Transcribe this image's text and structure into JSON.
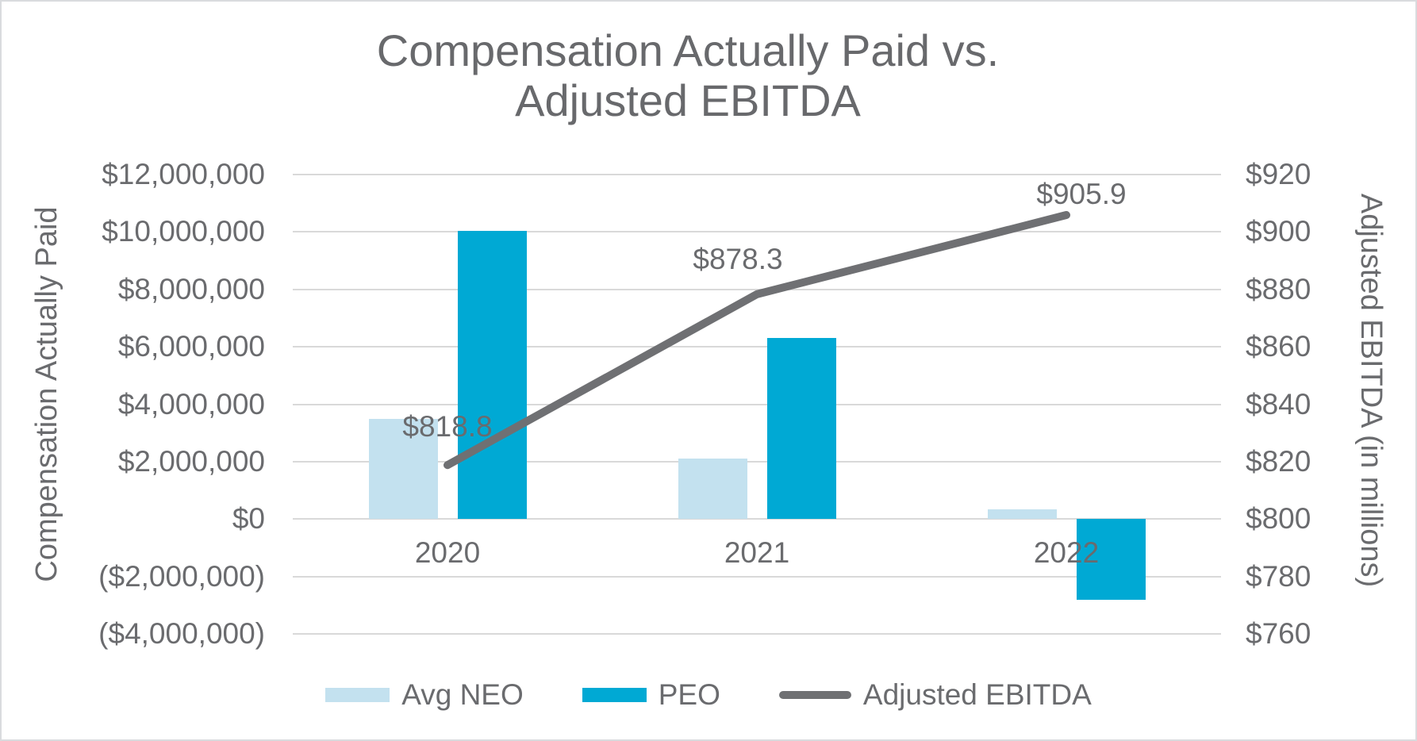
{
  "title": {
    "line1": "Compensation Actually Paid vs.",
    "line2": "Adjusted EBITDA"
  },
  "chart_data": {
    "type": "bar",
    "subtype": "combo-bar-line-dual-axis",
    "title": "Compensation Actually Paid vs. Adjusted EBITDA",
    "categories": [
      "2020",
      "2021",
      "2022"
    ],
    "series": [
      {
        "name": "Avg NEO",
        "type": "bar",
        "axis": "left",
        "color": "#C3E1EF",
        "values": [
          3500000,
          2100000,
          350000
        ]
      },
      {
        "name": "PEO",
        "type": "bar",
        "axis": "left",
        "color": "#00A9D4",
        "values": [
          10050000,
          6300000,
          -2800000
        ]
      },
      {
        "name": "Adjusted EBITDA",
        "type": "line",
        "axis": "right",
        "color": "#6F7073",
        "values": [
          818.8,
          878.3,
          905.9
        ],
        "point_labels": [
          "$818.8",
          "$878.3",
          "$905.9"
        ]
      }
    ],
    "left_axis": {
      "title": "Compensation Actually Paid",
      "min": -4000000,
      "max": 12000000,
      "step": 2000000,
      "tick_labels": [
        "$12,000,000",
        "$10,000,000",
        "$8,000,000",
        "$6,000,000",
        "$4,000,000",
        "$2,000,000",
        "$0",
        "($2,000,000)",
        "($4,000,000)"
      ]
    },
    "right_axis": {
      "title": "Adjusted EBITDA (in millions)",
      "min": 760,
      "max": 920,
      "step": 20,
      "tick_labels": [
        "$920",
        "$900",
        "$880",
        "$860",
        "$840",
        "$820",
        "$800",
        "$780",
        "$760"
      ]
    },
    "grid": true,
    "legend_position": "bottom",
    "colors": {
      "gridline": "#D9D9D9",
      "text": "#6A6B6E",
      "title_text": "#68696C",
      "border": "#D9DBDE"
    }
  }
}
